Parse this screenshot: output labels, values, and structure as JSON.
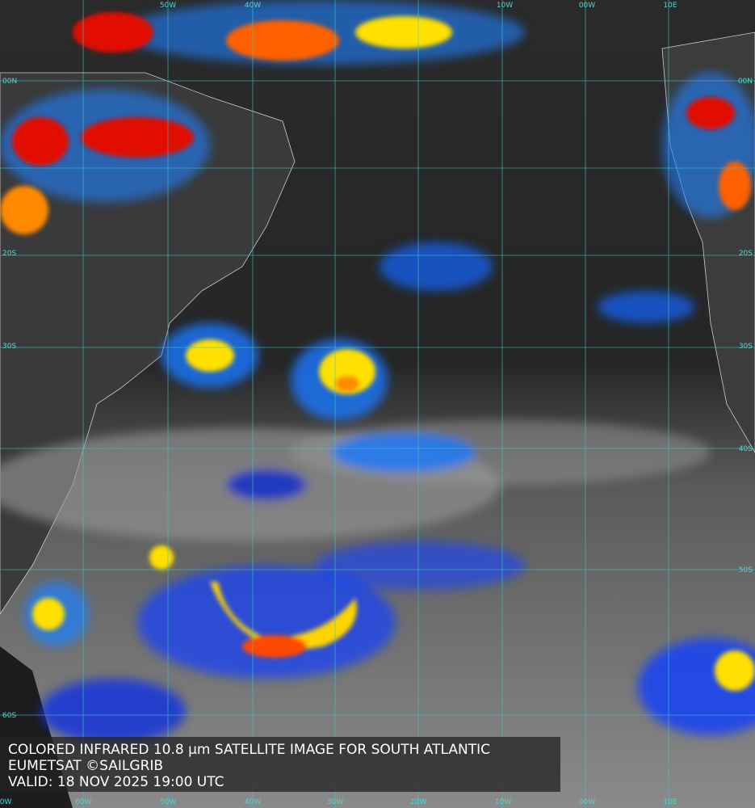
{
  "map": {
    "grid": {
      "top_labels": [
        "50W",
        "40W",
        "10W",
        "00W",
        "10E"
      ],
      "bottom_labels": [
        "0W",
        "60W",
        "50W",
        "40W",
        "30W",
        "20W",
        "10W",
        "00W",
        "10E"
      ],
      "left_labels": [
        "00N",
        "20S",
        "30S",
        "60S"
      ],
      "right_labels": [
        "00N",
        "20S",
        "30S",
        "40S",
        "50S"
      ]
    },
    "caption": {
      "line1": "COLORED INFRARED 10.8 µm SATELLITE IMAGE FOR SOUTH ATLANTIC",
      "line2": "EUMETSAT ©SAILGRIB",
      "line3": "VALID:  18 NOV 2025 19:00 UTC"
    }
  }
}
